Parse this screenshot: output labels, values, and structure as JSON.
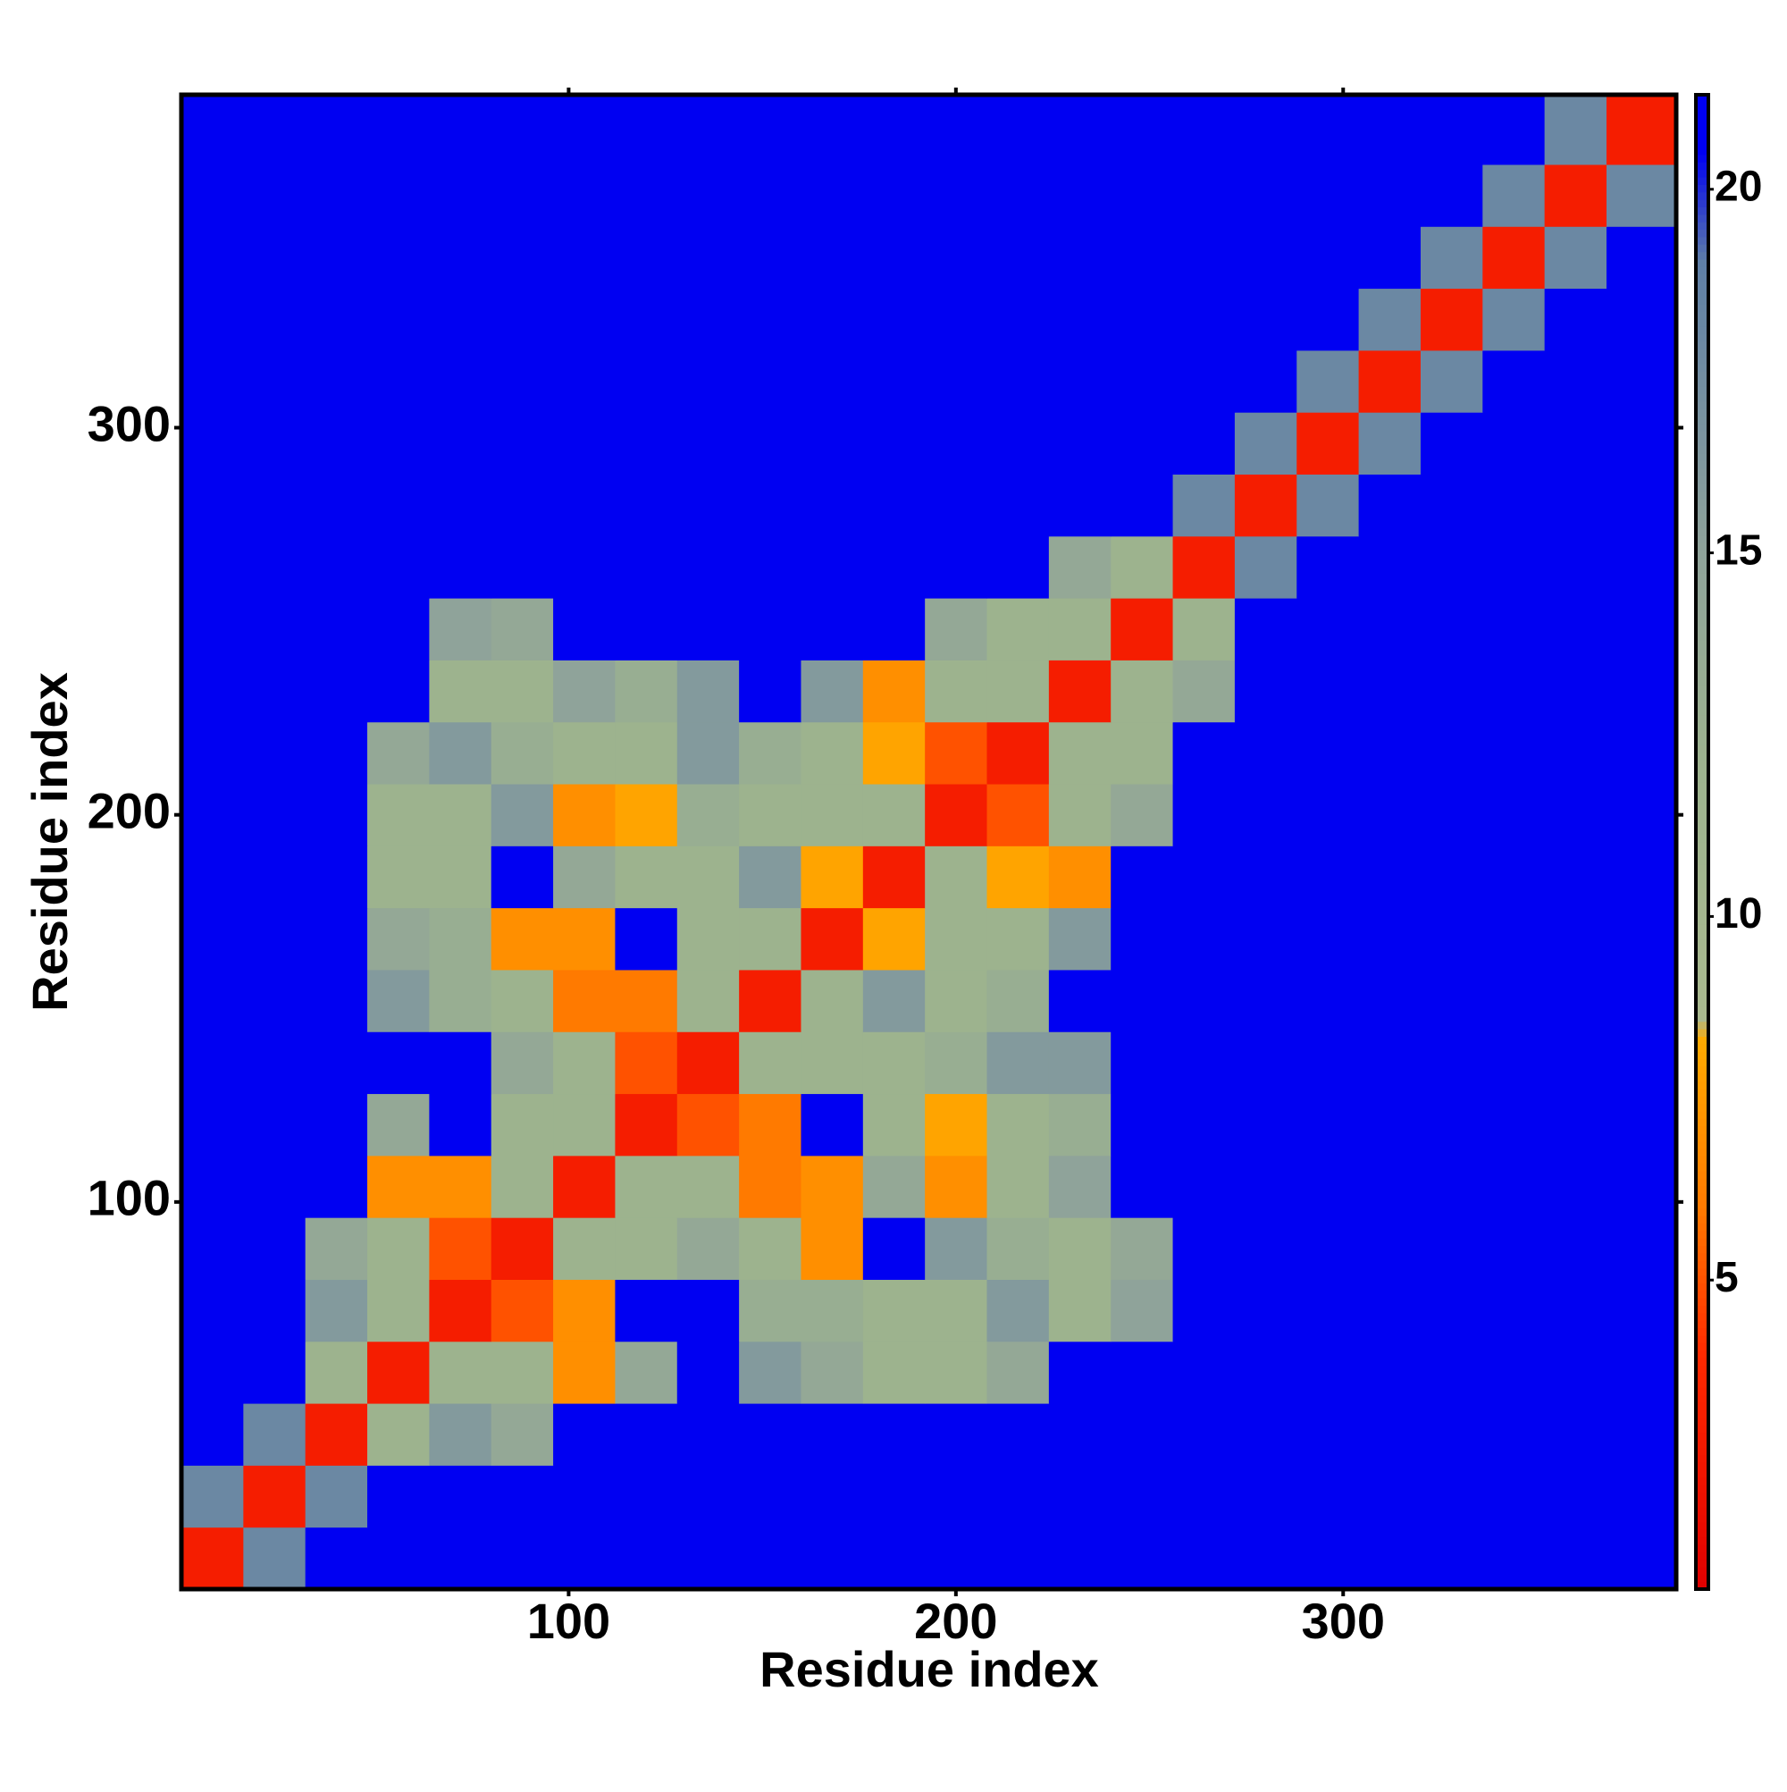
{
  "chart_data": {
    "type": "heatmap",
    "xlabel": "Residue index",
    "ylabel": "Residue index",
    "xlim": [
      0,
      386
    ],
    "ylim": [
      0,
      386
    ],
    "xticks": [
      100,
      200,
      300
    ],
    "yticks": [
      100,
      200,
      300
    ],
    "x_edges": [
      0,
      16,
      32,
      48,
      64,
      80,
      96,
      112,
      128,
      144,
      160,
      176,
      192,
      208,
      224,
      240,
      256,
      272,
      288,
      304,
      320,
      336,
      352,
      368,
      386
    ],
    "y_edges": [
      0,
      16,
      32,
      48,
      64,
      80,
      96,
      112,
      128,
      144,
      160,
      176,
      192,
      208,
      224,
      240,
      256,
      272,
      288,
      304,
      320,
      336,
      352,
      368,
      386
    ],
    "z": [
      [
        3,
        18,
        21,
        21,
        21,
        21,
        21,
        21,
        21,
        21,
        21,
        21,
        21,
        21,
        21,
        21,
        21,
        21,
        21,
        21,
        21,
        21,
        21,
        21
      ],
      [
        18,
        3,
        18,
        21,
        21,
        21,
        21,
        21,
        21,
        21,
        21,
        21,
        21,
        21,
        21,
        21,
        21,
        21,
        21,
        21,
        21,
        21,
        21,
        21
      ],
      [
        21,
        18,
        3,
        12,
        16,
        14,
        21,
        21,
        21,
        21,
        21,
        21,
        21,
        21,
        21,
        21,
        21,
        21,
        21,
        21,
        21,
        21,
        21,
        21
      ],
      [
        21,
        21,
        12,
        3,
        12,
        12,
        7,
        14,
        21,
        16,
        14,
        12,
        12,
        14,
        21,
        21,
        21,
        21,
        21,
        21,
        21,
        21,
        21,
        21
      ],
      [
        21,
        21,
        16,
        12,
        3,
        5,
        7,
        21,
        21,
        13,
        13,
        12,
        12,
        16,
        12,
        15,
        21,
        21,
        21,
        21,
        21,
        21,
        21,
        21
      ],
      [
        21,
        21,
        14,
        12,
        5,
        3,
        12,
        12,
        14,
        12,
        7,
        21,
        16,
        13,
        12,
        14,
        21,
        21,
        21,
        21,
        21,
        21,
        21,
        21
      ],
      [
        21,
        21,
        21,
        7,
        7,
        12,
        3,
        12,
        12,
        6,
        7,
        14,
        7,
        12,
        15,
        21,
        21,
        21,
        21,
        21,
        21,
        21,
        21,
        21
      ],
      [
        21,
        21,
        21,
        14,
        21,
        12,
        12,
        3,
        5,
        6,
        21,
        12,
        8,
        12,
        13,
        21,
        21,
        21,
        21,
        21,
        21,
        21,
        21,
        21
      ],
      [
        21,
        21,
        21,
        21,
        21,
        14,
        12,
        5,
        3,
        12,
        12,
        12,
        13,
        16,
        16,
        21,
        21,
        21,
        21,
        21,
        21,
        21,
        21,
        21
      ],
      [
        21,
        21,
        21,
        16,
        13,
        12,
        6,
        6,
        12,
        3,
        12,
        16,
        12,
        13,
        21,
        21,
        21,
        21,
        21,
        21,
        21,
        21,
        21,
        21
      ],
      [
        21,
        21,
        21,
        14,
        13,
        7,
        7,
        21,
        12,
        12,
        3,
        8,
        12,
        12,
        16,
        21,
        21,
        21,
        21,
        21,
        21,
        21,
        21,
        21
      ],
      [
        21,
        21,
        21,
        12,
        12,
        21,
        14,
        12,
        12,
        16,
        8,
        3,
        12,
        8,
        7,
        21,
        21,
        21,
        21,
        21,
        21,
        21,
        21,
        21
      ],
      [
        21,
        21,
        21,
        12,
        12,
        16,
        7,
        8,
        13,
        12,
        12,
        12,
        3,
        5,
        12,
        14,
        21,
        21,
        21,
        21,
        21,
        21,
        21,
        21
      ],
      [
        21,
        21,
        21,
        14,
        16,
        13,
        12,
        12,
        16,
        13,
        12,
        8,
        5,
        3,
        12,
        12,
        21,
        21,
        21,
        21,
        21,
        21,
        21,
        21
      ],
      [
        21,
        21,
        21,
        21,
        12,
        12,
        15,
        13,
        16,
        21,
        16,
        7,
        12,
        12,
        3,
        12,
        14,
        21,
        21,
        21,
        21,
        21,
        21,
        21
      ],
      [
        21,
        21,
        21,
        21,
        15,
        14,
        21,
        21,
        21,
        21,
        21,
        21,
        14,
        12,
        12,
        3,
        12,
        21,
        21,
        21,
        21,
        21,
        21,
        21
      ],
      [
        21,
        21,
        21,
        21,
        21,
        21,
        21,
        21,
        21,
        21,
        21,
        21,
        21,
        21,
        14,
        12,
        3,
        18,
        21,
        21,
        21,
        21,
        21,
        21
      ],
      [
        21,
        21,
        21,
        21,
        21,
        21,
        21,
        21,
        21,
        21,
        21,
        21,
        21,
        21,
        21,
        21,
        18,
        3,
        18,
        21,
        21,
        21,
        21,
        21
      ],
      [
        21,
        21,
        21,
        21,
        21,
        21,
        21,
        21,
        21,
        21,
        21,
        21,
        21,
        21,
        21,
        21,
        21,
        18,
        3,
        18,
        21,
        21,
        21,
        21
      ],
      [
        21,
        21,
        21,
        21,
        21,
        21,
        21,
        21,
        21,
        21,
        21,
        21,
        21,
        21,
        21,
        21,
        21,
        21,
        18,
        3,
        18,
        21,
        21,
        21
      ],
      [
        21,
        21,
        21,
        21,
        21,
        21,
        21,
        21,
        21,
        21,
        21,
        21,
        21,
        21,
        21,
        21,
        21,
        21,
        21,
        18,
        3,
        18,
        21,
        21
      ],
      [
        21,
        21,
        21,
        21,
        21,
        21,
        21,
        21,
        21,
        21,
        21,
        21,
        21,
        21,
        21,
        21,
        21,
        21,
        21,
        21,
        18,
        3,
        18,
        21
      ],
      [
        21,
        21,
        21,
        21,
        21,
        21,
        21,
        21,
        21,
        21,
        21,
        21,
        21,
        21,
        21,
        21,
        21,
        21,
        21,
        21,
        21,
        18,
        3,
        18
      ],
      [
        21,
        21,
        21,
        21,
        21,
        21,
        21,
        21,
        21,
        21,
        21,
        21,
        21,
        21,
        21,
        21,
        21,
        21,
        21,
        21,
        21,
        21,
        18,
        3
      ]
    ],
    "zlim": [
      0.75,
      21.3
    ],
    "colorbar_ticks": [
      5,
      10,
      15,
      20
    ],
    "colorscale": [
      [
        0.75,
        "#e00000"
      ],
      [
        4,
        "#ff2a00"
      ],
      [
        6,
        "#ff7a00"
      ],
      [
        8.3,
        "#ffaa00"
      ],
      [
        8.6,
        "#a9b98f"
      ],
      [
        12,
        "#9db38e"
      ],
      [
        15,
        "#8fa39a"
      ],
      [
        19,
        "#5f7fa6"
      ],
      [
        20.5,
        "#0000f2"
      ],
      [
        21.3,
        "#0000f2"
      ]
    ]
  }
}
